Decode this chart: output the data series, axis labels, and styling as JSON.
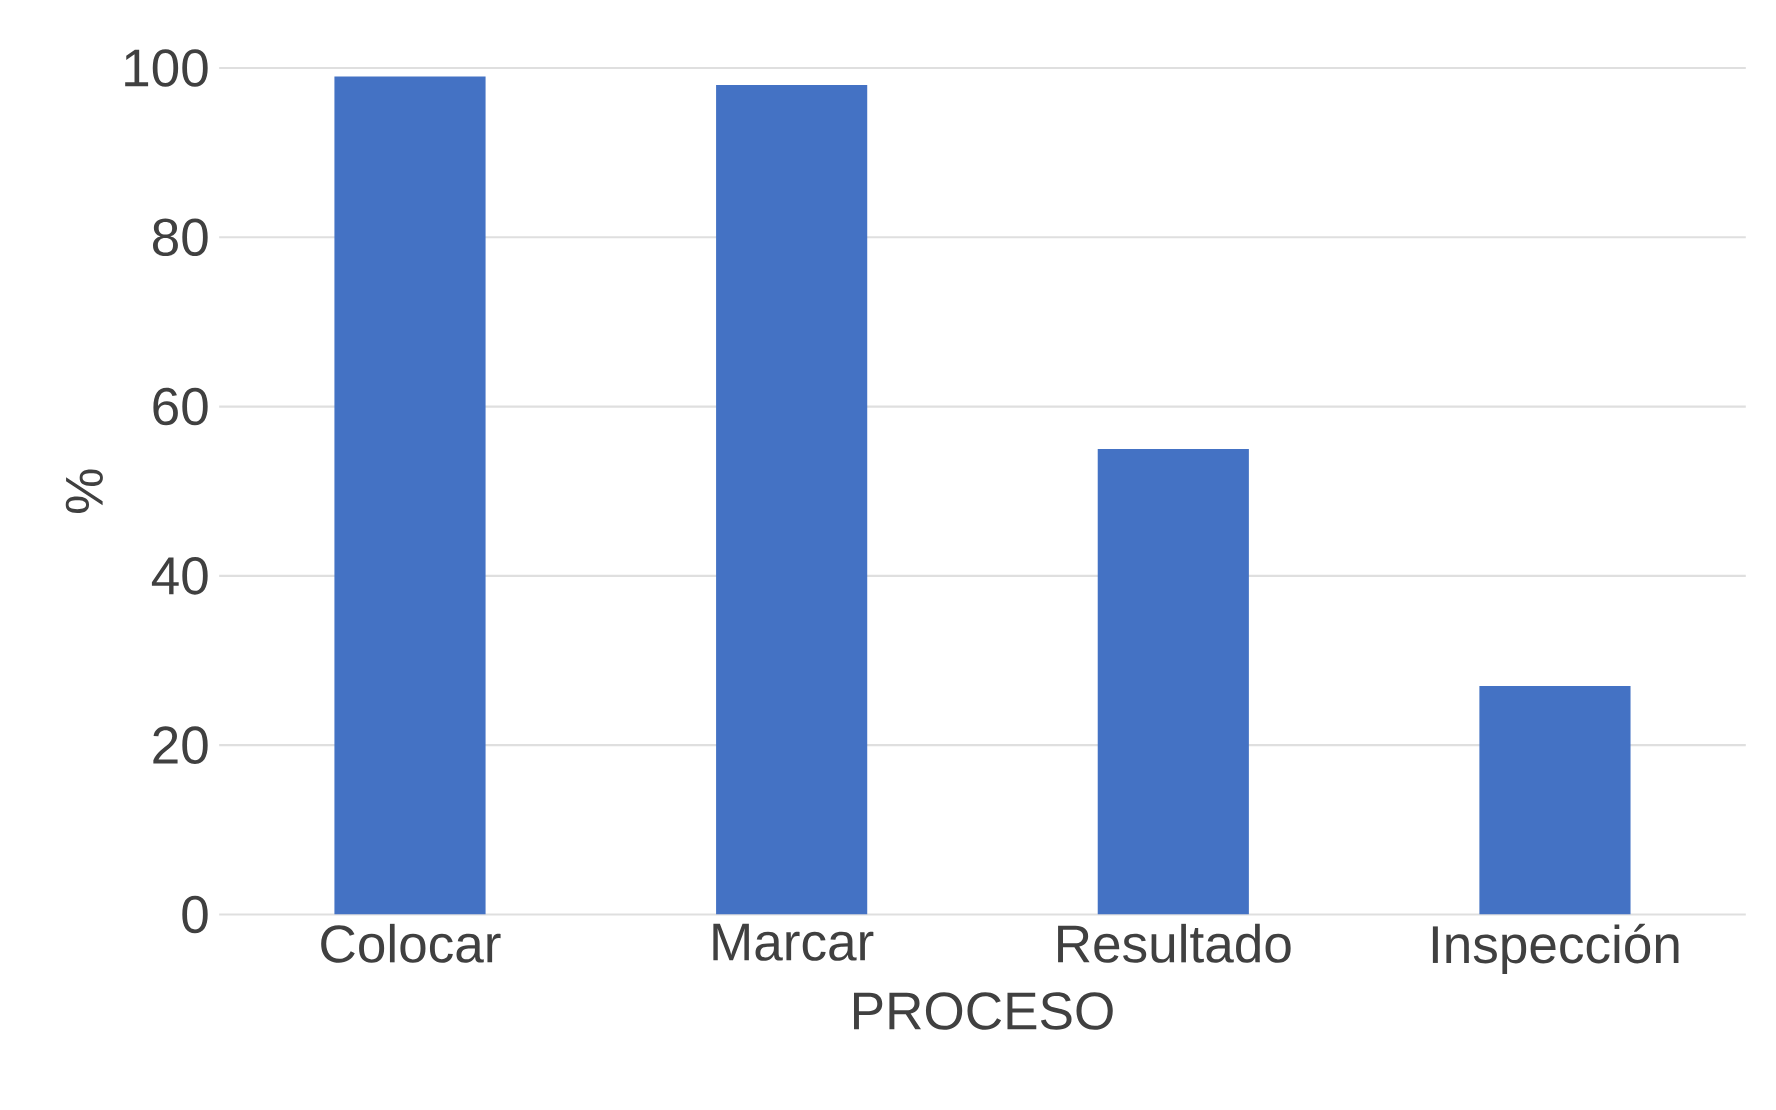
{
  "chart_data": {
    "type": "bar",
    "xlabel": "PROCESO",
    "ylabel": "%",
    "categories": [
      "Colocar",
      "Marcar",
      "Resultado",
      "Inspección"
    ],
    "values": [
      99,
      98,
      55,
      27
    ],
    "color": "#4472c4",
    "ylim": [
      0,
      100
    ],
    "yticks": [
      0,
      20,
      40,
      60,
      80,
      100
    ],
    "grid": "y"
  }
}
